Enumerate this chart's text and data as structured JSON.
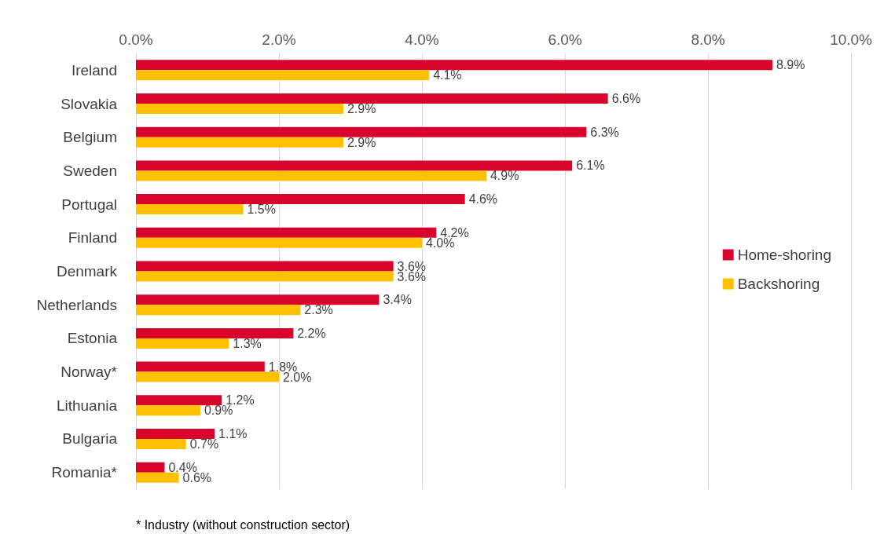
{
  "chart_data": {
    "type": "bar",
    "orientation": "horizontal",
    "categories": [
      "Ireland",
      "Slovakia",
      "Belgium",
      "Sweden",
      "Portugal",
      "Finland",
      "Denmark",
      "Netherlands",
      "Estonia",
      "Norway*",
      "Lithuania",
      "Bulgaria",
      "Romania*"
    ],
    "series": [
      {
        "name": "Home-shoring",
        "color": "#d9042b",
        "values": [
          8.9,
          6.6,
          6.3,
          6.1,
          4.6,
          4.2,
          3.6,
          3.4,
          2.2,
          1.8,
          1.2,
          1.1,
          0.4
        ],
        "value_labels": [
          "8.9%",
          "6.6%",
          "6.3%",
          "6.1%",
          "4.6%",
          "4.2%",
          "3.6%",
          "3.4%",
          "2.2%",
          "1.8%",
          "1.2%",
          "1.1%",
          "0.4%"
        ]
      },
      {
        "name": "Backshoring",
        "color": "#ffc000",
        "values": [
          4.1,
          2.9,
          2.9,
          4.9,
          1.5,
          4.0,
          3.6,
          2.3,
          1.3,
          2.0,
          0.9,
          0.7,
          0.6
        ],
        "value_labels": [
          "4.1%",
          "2.9%",
          "2.9%",
          "4.9%",
          "1.5%",
          "4.0%",
          "3.6%",
          "2.3%",
          "1.3%",
          "2.0%",
          "0.9%",
          "0.7%",
          "0.6%"
        ]
      }
    ],
    "xlim": [
      0,
      10
    ],
    "xticks": [
      {
        "value": 0,
        "label": "0.0%"
      },
      {
        "value": 2,
        "label": "2.0%"
      },
      {
        "value": 4,
        "label": "4.0%"
      },
      {
        "value": 6,
        "label": "6.0%"
      },
      {
        "value": 8,
        "label": "8.0%"
      },
      {
        "value": 10,
        "label": "10.0%"
      }
    ],
    "grid": "x",
    "legend": "right",
    "annotations": [
      "* Industry (without construction sector)"
    ]
  }
}
